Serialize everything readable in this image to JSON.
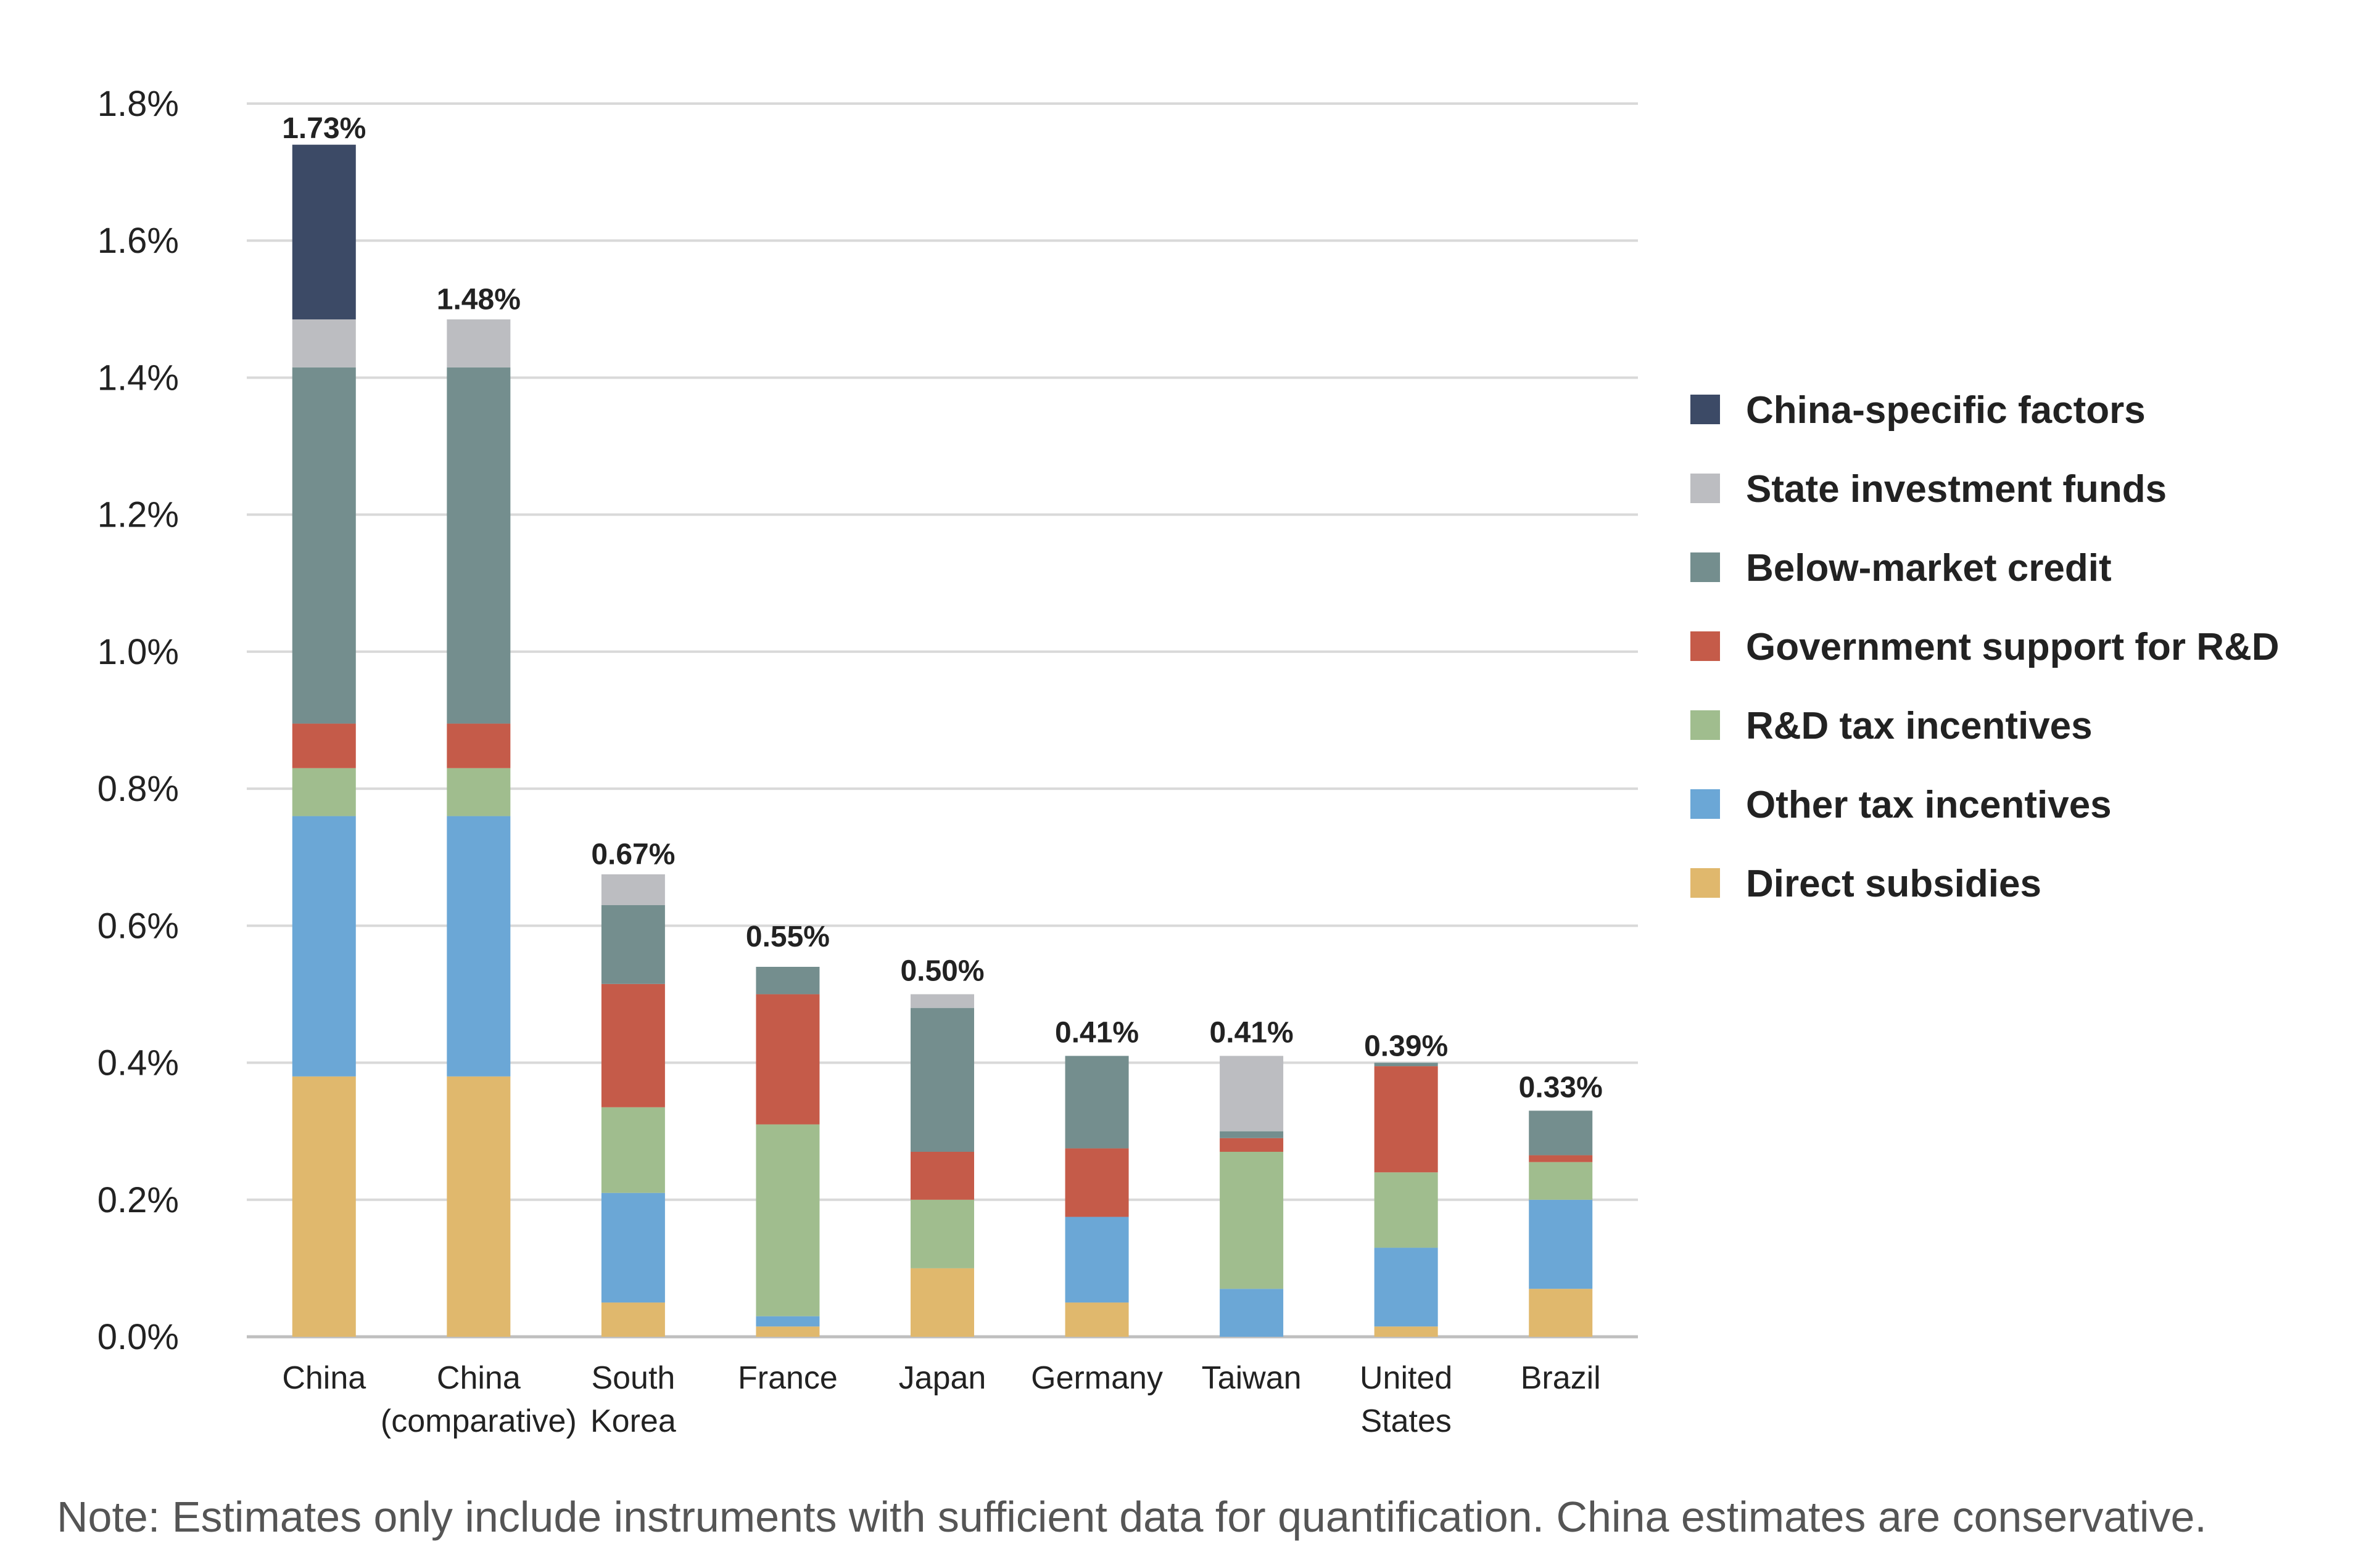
{
  "chart_data": {
    "type": "bar",
    "stacked": true,
    "ylim": [
      0,
      1.8
    ],
    "y_ticks": [
      "0.0%",
      "0.2%",
      "0.4%",
      "0.6%",
      "0.8%",
      "1.0%",
      "1.2%",
      "1.4%",
      "1.6%",
      "1.8%"
    ],
    "y_tick_values": [
      0,
      0.2,
      0.4,
      0.6,
      0.8,
      1.0,
      1.2,
      1.4,
      1.6,
      1.8
    ],
    "grid": true,
    "legend_position": "right",
    "categories": [
      {
        "lines": [
          "China"
        ]
      },
      {
        "lines": [
          "China",
          "(comparative)"
        ]
      },
      {
        "lines": [
          "South",
          "Korea"
        ]
      },
      {
        "lines": [
          "France"
        ]
      },
      {
        "lines": [
          "Japan"
        ]
      },
      {
        "lines": [
          "Germany"
        ]
      },
      {
        "lines": [
          "Taiwan"
        ]
      },
      {
        "lines": [
          "United",
          "States"
        ]
      },
      {
        "lines": [
          "Brazil"
        ]
      }
    ],
    "totals": [
      "1.73%",
      "1.48%",
      "0.67%",
      "0.55%",
      "0.50%",
      "0.41%",
      "0.41%",
      "0.39%",
      "0.33%"
    ],
    "total_values": [
      1.73,
      1.48,
      0.67,
      0.55,
      0.5,
      0.41,
      0.41,
      0.39,
      0.33
    ],
    "series": [
      {
        "name": "Direct subsidies",
        "color": "#E0B86D",
        "values": [
          0.38,
          0.38,
          0.05,
          0.015,
          0.1,
          0.05,
          0.0,
          0.015,
          0.07
        ]
      },
      {
        "name": "Other tax incentives",
        "color": "#6BA7D6",
        "values": [
          0.38,
          0.38,
          0.16,
          0.015,
          0.0,
          0.125,
          0.07,
          0.115,
          0.13
        ]
      },
      {
        "name": "R&D tax incentives",
        "color": "#A0BD8E",
        "values": [
          0.07,
          0.07,
          0.125,
          0.28,
          0.1,
          0.0,
          0.2,
          0.11,
          0.055
        ]
      },
      {
        "name": "Government support for R&D",
        "color": "#C55B49",
        "values": [
          0.065,
          0.065,
          0.18,
          0.19,
          0.07,
          0.1,
          0.02,
          0.155,
          0.01
        ]
      },
      {
        "name": "Below-market credit",
        "color": "#748E8E",
        "values": [
          0.52,
          0.52,
          0.115,
          0.04,
          0.21,
          0.135,
          0.01,
          0.005,
          0.065
        ]
      },
      {
        "name": "State investment funds",
        "color": "#BCBDC1",
        "values": [
          0.07,
          0.07,
          0.045,
          0.0,
          0.02,
          0.0,
          0.11,
          0.0,
          0.0
        ]
      },
      {
        "name": "China-specific factors",
        "color": "#3C4A66",
        "values": [
          0.255,
          0.0,
          0.0,
          0.0,
          0.0,
          0.0,
          0.0,
          0.0,
          0.0
        ]
      }
    ],
    "legend_order": [
      "China-specific factors",
      "State investment funds",
      "Below-market credit",
      "Government support for R&D",
      "R&D tax incentives",
      "Other tax incentives",
      "Direct subsidies"
    ],
    "gridline_color": "#D9D9D9",
    "axis_color": "#BFBFBF"
  },
  "note": "Note: Estimates only include instruments with sufficient data for quantification. China estimates are conservative."
}
